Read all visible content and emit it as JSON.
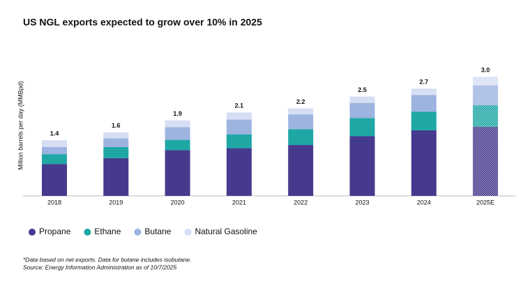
{
  "chart_data": {
    "type": "stacked_bar",
    "title": "US NGL exports expected to grow over 10% in 2025",
    "y_label": "Million barrels per day (MMBpd)",
    "categories": [
      "2018",
      "2019",
      "2020",
      "2021",
      "2022",
      "2023",
      "2024",
      "2025E"
    ],
    "series": [
      {
        "name": "Propane",
        "color": "#463a8e",
        "values": [
          0.8,
          0.95,
          1.15,
          1.2,
          1.28,
          1.5,
          1.65,
          1.74
        ]
      },
      {
        "name": "Ethane",
        "color": "#1fa7a6",
        "values": [
          0.25,
          0.28,
          0.26,
          0.35,
          0.4,
          0.46,
          0.47,
          0.54
        ]
      },
      {
        "name": "Butane",
        "color": "#9db4e0",
        "values": [
          0.18,
          0.22,
          0.32,
          0.37,
          0.37,
          0.38,
          0.42,
          0.5
        ]
      },
      {
        "name": "Natural Gasoline",
        "color": "#d5def3",
        "values": [
          0.17,
          0.15,
          0.17,
          0.18,
          0.15,
          0.16,
          0.16,
          0.22
        ]
      }
    ],
    "totals": [
      1.4,
      1.6,
      1.9,
      2.1,
      2.2,
      2.5,
      2.7,
      3.0
    ],
    "total_labels": [
      "1.4",
      "1.6",
      "1.9",
      "2.1",
      "2.2",
      "2.5",
      "2.7",
      "3.0"
    ],
    "ylim": [
      0,
      3.0
    ],
    "hatch_last": true,
    "footnotes": [
      "*Data based on net exports. Data for butane includes isobutane.",
      "Source: Energy Information Administration as of 10/7/2025"
    ]
  }
}
